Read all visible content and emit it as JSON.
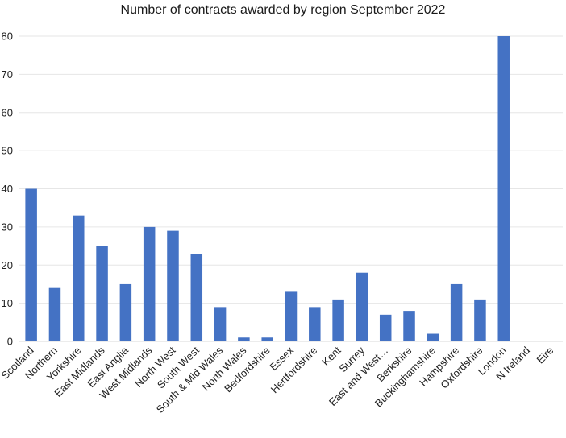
{
  "chart_data": {
    "type": "bar",
    "title": "Number of contracts awarded by region September 2022",
    "xlabel": "",
    "ylabel": "",
    "ylim": [
      0,
      80
    ],
    "yticks": [
      0,
      10,
      20,
      30,
      40,
      50,
      60,
      70,
      80
    ],
    "grid": true,
    "legend": "none",
    "bar_color": "#4472C4",
    "grid_color": "#e6e6e6",
    "categories": [
      "Scotland",
      "Northern",
      "Yorkshire",
      "East Midlands",
      "East Anglia",
      "West Midlands",
      "North West",
      "South West",
      "South & Mid Wales",
      "North Wales",
      "Bedfordshire",
      "Essex",
      "Hertfordshire",
      "Kent",
      "Surrey",
      "East and West…",
      "Berkshire",
      "Buckinghamshire",
      "Hampshire",
      "Oxfordshire",
      "London",
      "N Ireland",
      "Eire"
    ],
    "values": [
      40,
      14,
      33,
      25,
      15,
      30,
      29,
      23,
      9,
      1,
      1,
      13,
      9,
      11,
      18,
      7,
      8,
      2,
      15,
      11,
      80,
      0,
      0
    ]
  }
}
